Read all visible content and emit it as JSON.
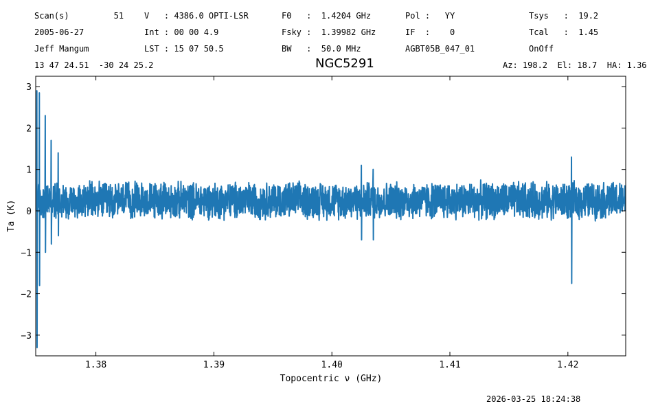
{
  "header": {
    "row1": [
      {
        "text": "Scan(s)         51"
      },
      {
        "text": "V   : 4386.0 OPTI-LSR"
      },
      {
        "text": "F0   :  1.4204 GHz"
      },
      {
        "text": "Pol :   YY"
      },
      {
        "text": "Tsys   :  19.2"
      }
    ],
    "row2": [
      {
        "text": "2005-06-27"
      },
      {
        "text": "Int : 00 00 4.9"
      },
      {
        "text": "Fsky :  1.39982 GHz"
      },
      {
        "text": "IF  :    0"
      },
      {
        "text": "Tcal   :  1.45"
      }
    ],
    "row3": [
      {
        "text": "Jeff Mangum"
      },
      {
        "text": "LST : 15 07 50.5"
      },
      {
        "text": "BW   :  50.0 MHz"
      },
      {
        "text": "AGBT05B_047_01"
      },
      {
        "text": "OnOff"
      }
    ],
    "coords": "13 47 24.51  -30 24 25.2",
    "source": "NGC5291",
    "azel": "Az: 198.2  El: 18.7  HA: 1.36"
  },
  "footer": {
    "timestamp": "2026-03-25 18:24:38"
  },
  "chart_data": {
    "type": "line",
    "xlabel": "Topocentric ν (GHz)",
    "ylabel": "Ta (K)",
    "xlim": [
      1.3749,
      1.4249
    ],
    "ylim": [
      -3.5,
      3.25
    ],
    "xticks": [
      1.38,
      1.39,
      1.4,
      1.41,
      1.42
    ],
    "xtick_labels": [
      "1.38",
      "1.39",
      "1.40",
      "1.41",
      "1.42"
    ],
    "yticks": [
      -3,
      -2,
      -1,
      0,
      1,
      2,
      3
    ],
    "ytick_labels": [
      "−3",
      "−2",
      "−1",
      "0",
      "1",
      "2",
      "3"
    ],
    "line_color": "#1f77b4",
    "grid": false,
    "series": [
      {
        "x_start": 1.3749,
        "x_end": 1.4249,
        "baseline": 0.25,
        "noise_halfwidth": 0.5,
        "features": [
          {
            "x": 1.375,
            "min": -3.3,
            "max": 2.9
          },
          {
            "x": 1.3752,
            "min": -1.8,
            "max": 2.85
          },
          {
            "x": 1.3757,
            "min": -1.0,
            "max": 2.3
          },
          {
            "x": 1.3762,
            "min": -0.8,
            "max": 1.7
          },
          {
            "x": 1.3768,
            "min": -0.6,
            "max": 1.4
          },
          {
            "x": 1.4025,
            "min": -0.7,
            "max": 1.1
          },
          {
            "x": 1.4035,
            "min": -0.7,
            "max": 1.0
          },
          {
            "x": 1.4203,
            "min": -1.75,
            "max": 1.3
          }
        ]
      }
    ]
  }
}
